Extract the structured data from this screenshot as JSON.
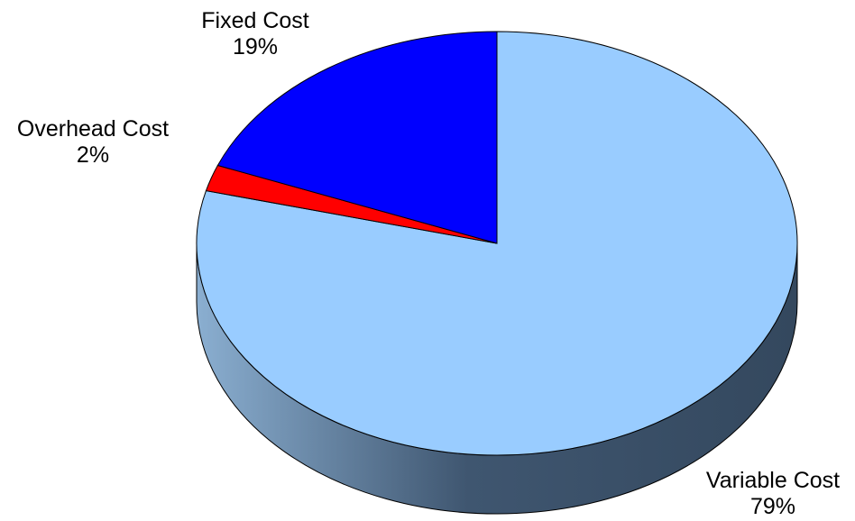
{
  "chart_data": {
    "type": "pie",
    "style": "3d",
    "categories": [
      "Variable Cost",
      "Overhead Cost",
      "Fixed Cost"
    ],
    "values": [
      79,
      2,
      19
    ],
    "value_labels": [
      "79%",
      "2%",
      "19%"
    ],
    "colors": {
      "Variable Cost": "#99CCFF",
      "Overhead Cost": "#FF0000",
      "Fixed Cost": "#0000FF",
      "edge_light": "#8AAED0",
      "edge_dark": "#3A4E66",
      "outline": "#000000"
    }
  }
}
